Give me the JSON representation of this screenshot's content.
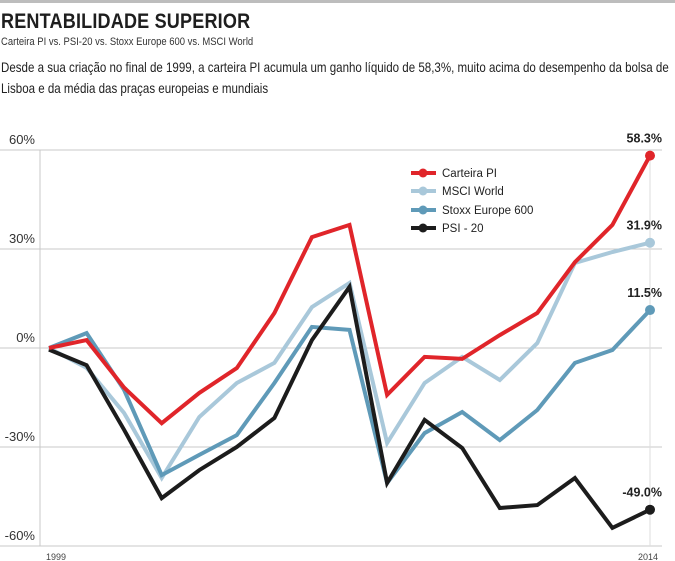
{
  "header": {
    "title": "RENTABILIDADE SUPERIOR",
    "subtitle": "Carteira PI vs. PSI-20 vs. Stoxx Europe 600 vs. MSCI World",
    "description": "Desde a sua criação no final de 1999, a carteira PI acumula um ganho líquido de 58,3%, muito acima do desempenho da bolsa de Lisboa e da média das praças europeias e mundiais"
  },
  "chart_data": {
    "type": "line",
    "title": "RENTABILIDADE SUPERIOR",
    "xlabel": "",
    "ylabel": "",
    "x": [
      0,
      1,
      2,
      3,
      4,
      5,
      6,
      7,
      8,
      9,
      10,
      11,
      12,
      13,
      14,
      15,
      16
    ],
    "x_tick_labels": [
      {
        "index": 0,
        "label": "1999"
      },
      {
        "index": 16,
        "label": "2014"
      }
    ],
    "ylim": [
      -60,
      60
    ],
    "y_ticks": [
      {
        "value": 60,
        "label": "60%"
      },
      {
        "value": 30,
        "label": "30%"
      },
      {
        "value": 0,
        "label": "0%"
      },
      {
        "value": -30,
        "label": "-30%"
      },
      {
        "value": -60,
        "label": "-60%"
      }
    ],
    "grid": true,
    "legend_position": "top-right",
    "series": [
      {
        "name": "Carteira PI",
        "color": "#e0252a",
        "values": [
          0,
          2.4,
          -12,
          -22.8,
          -13.6,
          -6.1,
          10.6,
          33.6,
          37.3,
          -14.2,
          -2.7,
          -3.3,
          3.9,
          10.6,
          26,
          37.3,
          58.3
        ],
        "end_label": "58.3%"
      },
      {
        "name": "MSCI World",
        "color": "#a9c8da",
        "values": [
          0,
          -6,
          -19.7,
          -39.4,
          -20.9,
          -10.6,
          -4.5,
          12.4,
          19.7,
          -28.8,
          -10.6,
          -2.7,
          -9.7,
          1.5,
          25.8,
          29.1,
          31.9
        ],
        "end_label": "31.9%"
      },
      {
        "name": "Stoxx Europe 600",
        "color": "#5f9ab8",
        "values": [
          0,
          4.5,
          -12.7,
          -38.5,
          -32.4,
          -26.4,
          -10.6,
          6.4,
          5.5,
          -40.9,
          -25.8,
          -19.4,
          -27.9,
          -18.8,
          -4.5,
          -0.6,
          11.5
        ],
        "end_label": "11.5%"
      },
      {
        "name": "PSI - 20",
        "color": "#1c1c1c",
        "values": [
          -0.5,
          -5.2,
          -24.8,
          -45.5,
          -37,
          -30,
          -21.2,
          2.4,
          18.5,
          -40.9,
          -21.8,
          -30.3,
          -48.5,
          -47.6,
          -39.4,
          -54.5,
          -49.0
        ],
        "end_label": "-49.0%"
      }
    ]
  }
}
